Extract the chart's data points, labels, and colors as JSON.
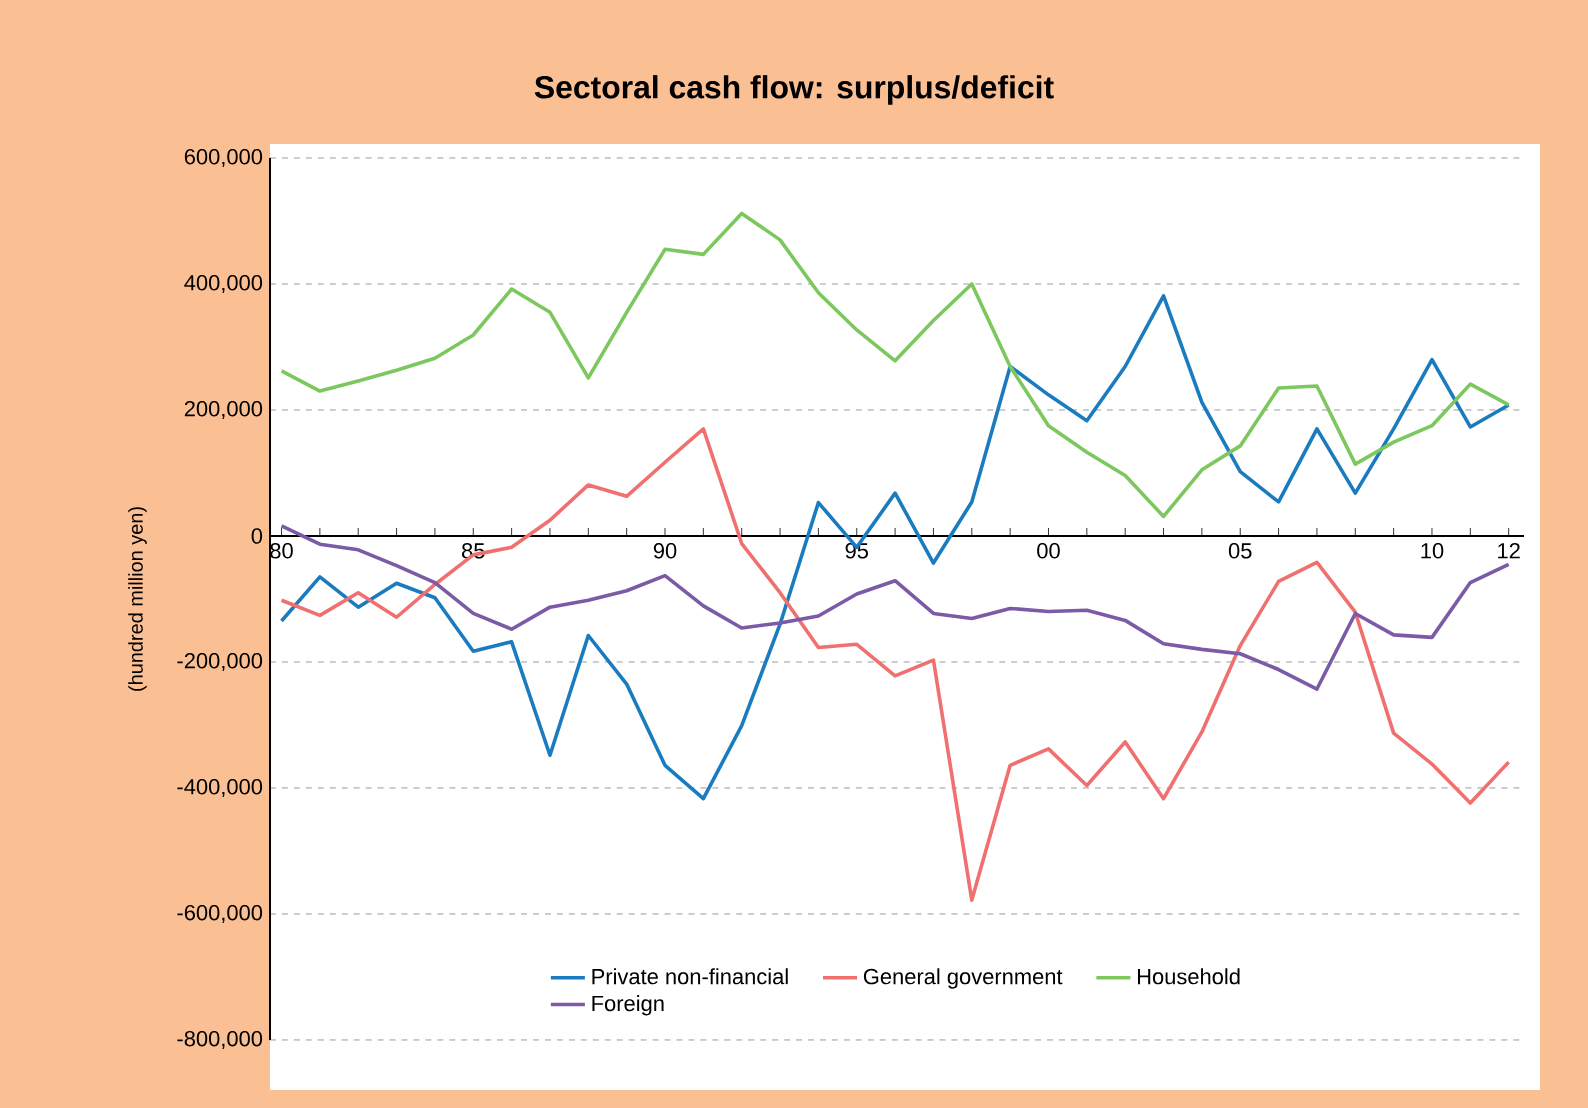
{
  "chart_data": {
    "type": "line",
    "title": "Sectoral cash flow: surplus/deficit",
    "ylabel": "(hundred million yen)",
    "x": [
      1980,
      1981,
      1982,
      1983,
      1984,
      1985,
      1986,
      1987,
      1988,
      1989,
      1990,
      1991,
      1992,
      1993,
      1994,
      1995,
      1996,
      1997,
      1998,
      1999,
      2000,
      2001,
      2002,
      2003,
      2004,
      2005,
      2006,
      2007,
      2008,
      2009,
      2010,
      2011,
      2012
    ],
    "series": [
      {
        "name": "Private non-financial",
        "color": "#1a7bbf",
        "values": [
          -135000,
          -65000,
          -113000,
          -75000,
          -98000,
          -183000,
          -168000,
          -348000,
          -158000,
          -235000,
          -364000,
          -417000,
          -301000,
          -140000,
          53000,
          -18000,
          68000,
          -43000,
          54000,
          269000,
          224000,
          183000,
          269000,
          381000,
          212000,
          102000,
          54000,
          170000,
          68000,
          170000,
          280000,
          173000,
          208000
        ]
      },
      {
        "name": "General government",
        "color": "#f07070",
        "values": [
          -102000,
          -126000,
          -90000,
          -129000,
          -77000,
          -30000,
          -18000,
          25000,
          81000,
          63000,
          117000,
          170000,
          -12000,
          -90000,
          -177000,
          -172000,
          -222000,
          -197000,
          -578000,
          -364000,
          -338000,
          -396000,
          -327000,
          -417000,
          -311000,
          -174000,
          -72000,
          -42000,
          -121000,
          -313000,
          -362000,
          -424000,
          -359000
        ]
      },
      {
        "name": "Household",
        "color": "#7dc75f",
        "values": [
          262000,
          230000,
          246000,
          263000,
          282000,
          319000,
          392000,
          355000,
          251000,
          355000,
          455000,
          447000,
          512000,
          470000,
          386000,
          327000,
          278000,
          342000,
          400000,
          269000,
          175000,
          133000,
          96000,
          31000,
          105000,
          143000,
          235000,
          238000,
          114000,
          149000,
          175000,
          241000,
          208000
        ]
      },
      {
        "name": "Foreign",
        "color": "#7b5aa6",
        "values": [
          16000,
          -13000,
          -22000,
          -47000,
          -74000,
          -123000,
          -148000,
          -113000,
          -102000,
          -87000,
          -63000,
          -111000,
          -146000,
          -138000,
          -127000,
          -92000,
          -71000,
          -123000,
          -131000,
          -115000,
          -120000,
          -118000,
          -134000,
          -171000,
          -180000,
          -187000,
          -212000,
          -243000,
          -123000,
          -157000,
          -161000,
          -74000,
          -45000
        ]
      }
    ],
    "xlim": [
      1979.7,
      2012.4
    ],
    "ylim": [
      -800000,
      600000
    ],
    "xticks": [
      {
        "value": 1980,
        "label": "80"
      },
      {
        "value": 1981,
        "label": null
      },
      {
        "value": 1982,
        "label": null
      },
      {
        "value": 1983,
        "label": null
      },
      {
        "value": 1984,
        "label": null
      },
      {
        "value": 1985,
        "label": "85"
      },
      {
        "value": 1986,
        "label": null
      },
      {
        "value": 1987,
        "label": null
      },
      {
        "value": 1988,
        "label": null
      },
      {
        "value": 1989,
        "label": null
      },
      {
        "value": 1990,
        "label": "90"
      },
      {
        "value": 1991,
        "label": null
      },
      {
        "value": 1992,
        "label": null
      },
      {
        "value": 1993,
        "label": null
      },
      {
        "value": 1994,
        "label": null
      },
      {
        "value": 1995,
        "label": "95"
      },
      {
        "value": 1996,
        "label": null
      },
      {
        "value": 1997,
        "label": null
      },
      {
        "value": 1998,
        "label": null
      },
      {
        "value": 1999,
        "label": null
      },
      {
        "value": 2000,
        "label": "00"
      },
      {
        "value": 2001,
        "label": null
      },
      {
        "value": 2002,
        "label": null
      },
      {
        "value": 2003,
        "label": null
      },
      {
        "value": 2004,
        "label": null
      },
      {
        "value": 2005,
        "label": "05"
      },
      {
        "value": 2006,
        "label": null
      },
      {
        "value": 2007,
        "label": null
      },
      {
        "value": 2008,
        "label": null
      },
      {
        "value": 2009,
        "label": null
      },
      {
        "value": 2010,
        "label": "10"
      },
      {
        "value": 2011,
        "label": null
      },
      {
        "value": 2012,
        "label": "12"
      }
    ],
    "yticks": [
      {
        "value": 600000,
        "label": "600,000"
      },
      {
        "value": 400000,
        "label": "400,000"
      },
      {
        "value": 200000,
        "label": "200,000"
      },
      0,
      {
        "value": -200000,
        "label": "-200,000"
      },
      {
        "value": -400000,
        "label": "-400,000"
      },
      {
        "value": -600000,
        "label": "-600,000"
      },
      {
        "value": -800000,
        "label": "-800,000"
      }
    ],
    "grid": "y",
    "legend": "bottom",
    "marker": "none",
    "line_style": "solid"
  }
}
